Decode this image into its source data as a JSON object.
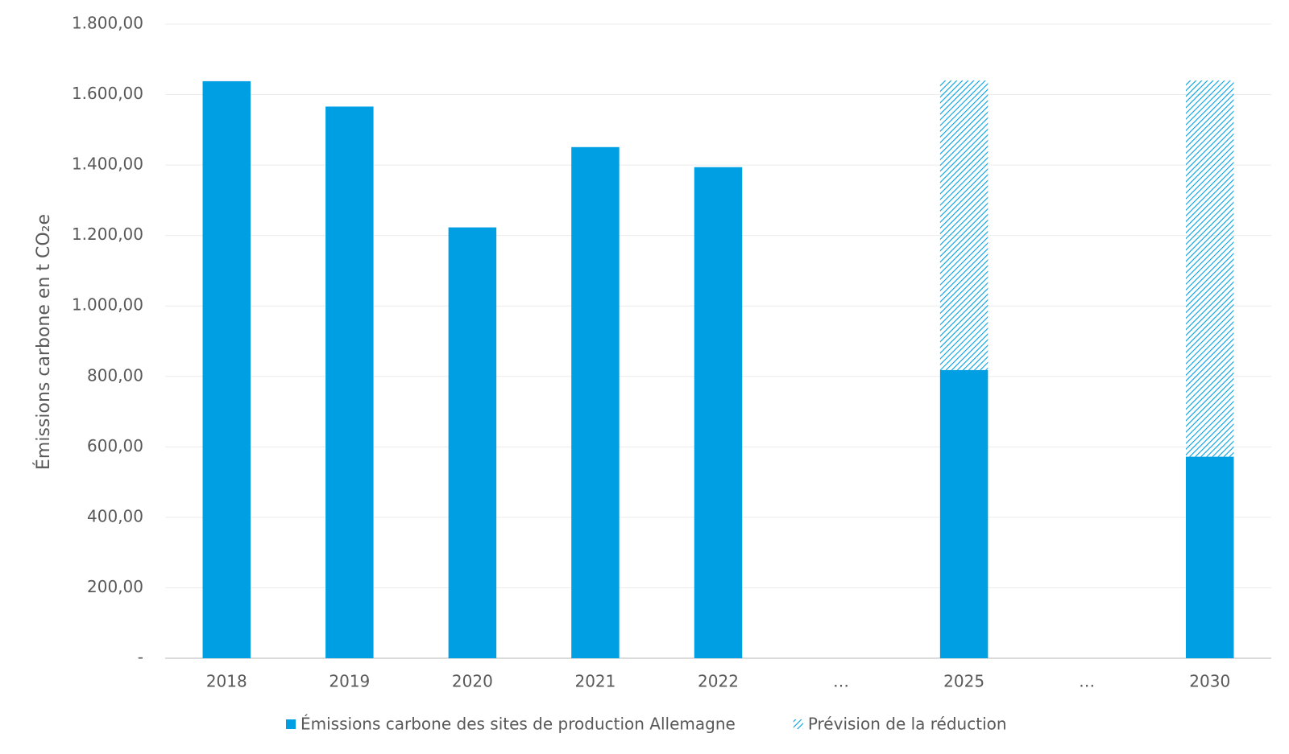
{
  "chart_data": {
    "type": "stacked_bar",
    "y_label": "Émissions carbone en t CO₂e",
    "categories": [
      "2018",
      "2019",
      "2020",
      "2021",
      "2022",
      "…",
      "2025",
      "…",
      "2030"
    ],
    "series": [
      {
        "name": "Émissions carbone des sites de production Allemagne",
        "color": "#009fe3",
        "hatch": false,
        "values": [
          1638,
          1566,
          1223,
          1451,
          1394,
          null,
          818,
          null,
          572
        ]
      },
      {
        "name": "Prévision de la réduction",
        "color": "#009fe3",
        "hatch": true,
        "values": [
          null,
          null,
          null,
          null,
          null,
          null,
          822,
          null,
          1068
        ]
      }
    ],
    "ylim": [
      0,
      1800
    ],
    "yticks": [
      {
        "value": 0,
        "label": "-"
      },
      {
        "value": 200,
        "label": "200,00"
      },
      {
        "value": 400,
        "label": "400,00"
      },
      {
        "value": 600,
        "label": "600,00"
      },
      {
        "value": 800,
        "label": "800,00"
      },
      {
        "value": 1000,
        "label": "1.000,00"
      },
      {
        "value": 1200,
        "label": "1.200,00"
      },
      {
        "value": 1400,
        "label": "1.400,00"
      },
      {
        "value": 1600,
        "label": "1.600,00"
      },
      {
        "value": 1800,
        "label": "1.800,00"
      }
    ],
    "grid": true
  }
}
